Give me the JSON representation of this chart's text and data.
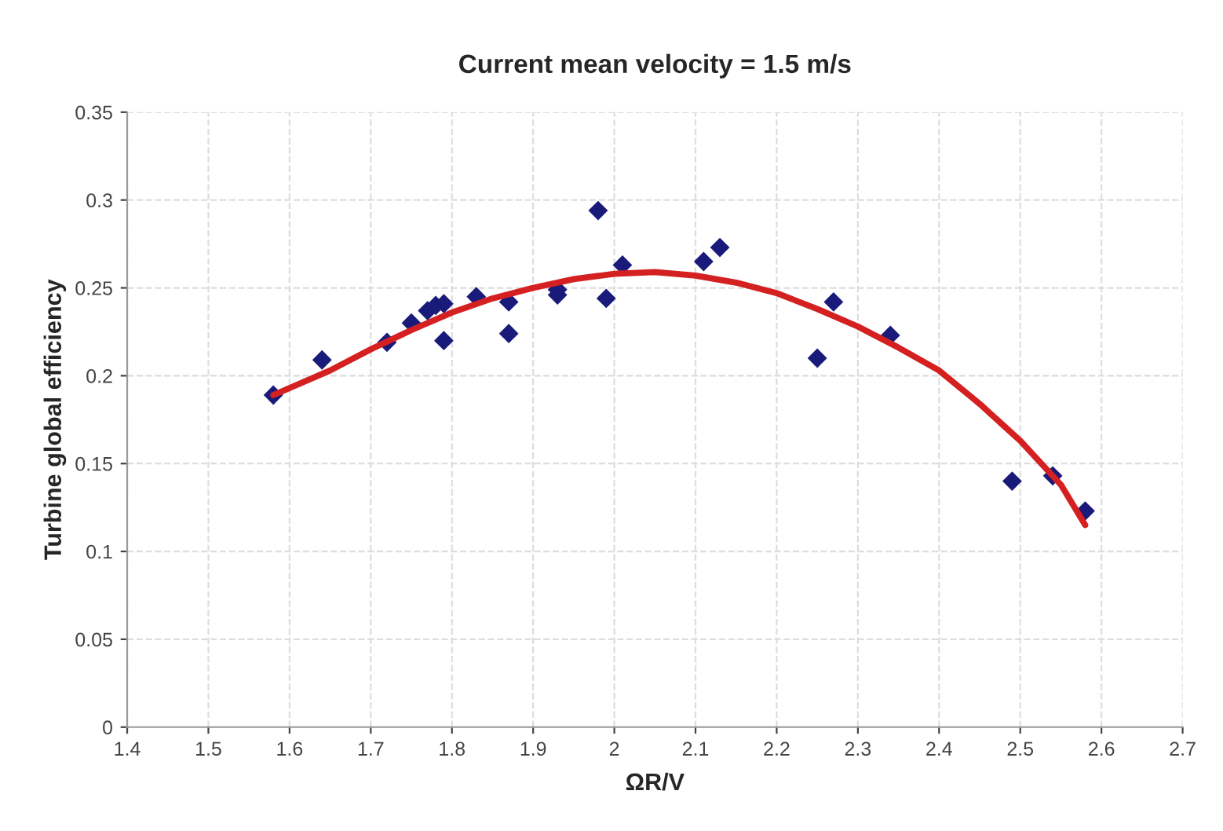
{
  "chart_data": {
    "type": "scatter",
    "title": "Current mean velocity = 1.5 m/s",
    "xlabel": "ΩR/V",
    "ylabel": "Turbine global efficiency",
    "series": [
      {
        "color": "#1a1a7a",
        "marker": "diamond",
        "x": [
          1.58,
          1.64,
          1.72,
          1.75,
          1.77,
          1.78,
          1.79,
          1.79,
          1.83,
          1.87,
          1.87,
          1.93,
          1.93,
          1.98,
          1.99,
          2.01,
          2.11,
          2.13,
          2.25,
          2.27,
          2.34,
          2.49,
          2.54,
          2.58
        ],
        "values": [
          0.189,
          0.209,
          0.219,
          0.23,
          0.237,
          0.24,
          0.241,
          0.22,
          0.245,
          0.242,
          0.224,
          0.246,
          0.249,
          0.294,
          0.244,
          0.263,
          0.265,
          0.273,
          0.21,
          0.242,
          0.223,
          0.14,
          0.143,
          0.123
        ]
      },
      {
        "type": "line",
        "color": "#d42020",
        "marker": "none",
        "x": [
          1.58,
          1.65,
          1.7,
          1.75,
          1.8,
          1.85,
          1.9,
          1.95,
          2.0,
          2.05,
          2.1,
          2.15,
          2.2,
          2.25,
          2.3,
          2.35,
          2.4,
          2.45,
          2.5,
          2.55,
          2.58
        ],
        "values": [
          0.189,
          0.203,
          0.215,
          0.226,
          0.236,
          0.244,
          0.25,
          0.255,
          0.258,
          0.259,
          0.257,
          0.253,
          0.247,
          0.238,
          0.228,
          0.216,
          0.203,
          0.184,
          0.163,
          0.138,
          0.115
        ]
      }
    ],
    "xlim": [
      1.4,
      2.7
    ],
    "xticks": [
      1.4,
      1.5,
      1.6,
      1.7,
      1.8,
      1.9,
      2,
      2.1,
      2.2,
      2.3,
      2.4,
      2.5,
      2.6,
      2.7
    ],
    "ylim": [
      0,
      0.35
    ],
    "yticks": [
      0,
      0.05,
      0.1,
      0.15,
      0.2,
      0.25,
      0.3,
      0.35
    ],
    "grid": true
  }
}
